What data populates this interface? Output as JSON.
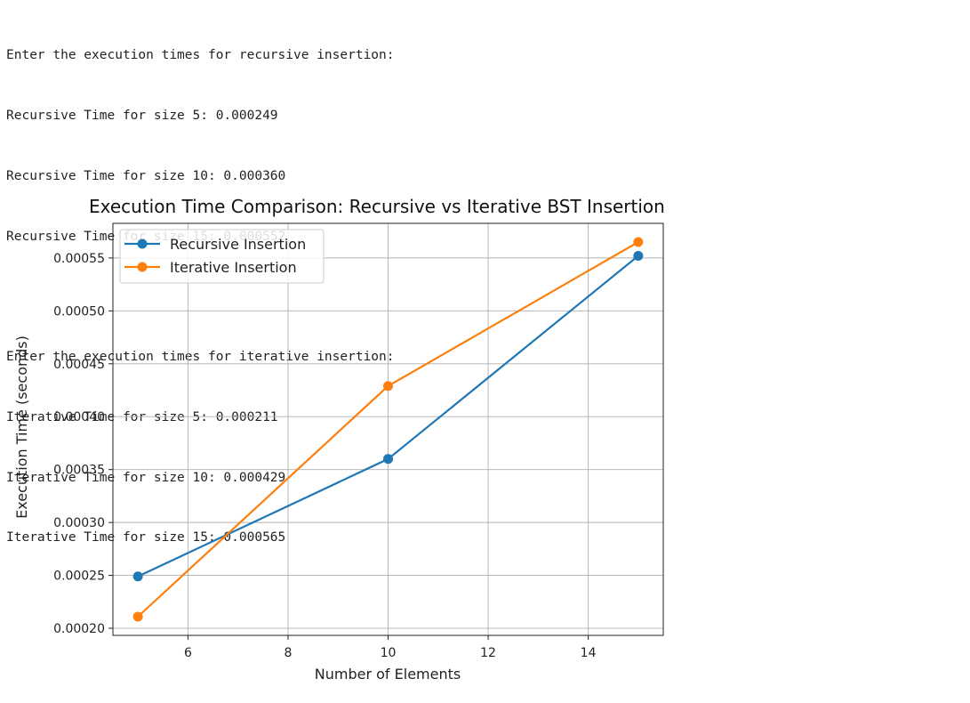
{
  "console": {
    "recursive_header": "Enter the execution times for recursive insertion:",
    "recursive_lines": [
      "Recursive Time for size 5: 0.000249",
      "Recursive Time for size 10: 0.000360",
      "Recursive Time for size 15: 0.000552"
    ],
    "iterative_header": "Enter the execution times for iterative insertion:",
    "iterative_lines": [
      "Iterative Time for size 5: 0.000211",
      "Iterative Time for size 10: 0.000429",
      "Iterative Time for size 15: 0.000565"
    ]
  },
  "chart_data": {
    "type": "line",
    "title": "Execution Time Comparison: Recursive vs Iterative BST Insertion",
    "xlabel": "Number of Elements",
    "ylabel": "Execution Time (seconds)",
    "x": [
      5,
      10,
      15
    ],
    "series": [
      {
        "name": "Recursive Insertion",
        "values": [
          0.000249,
          0.00036,
          0.000552
        ],
        "color": "#1f77b4"
      },
      {
        "name": "Iterative Insertion",
        "values": [
          0.000211,
          0.000429,
          0.000565
        ],
        "color": "#ff7f0e"
      }
    ],
    "xlim": [
      4.5,
      15.5
    ],
    "ylim": [
      0.0001933,
      0.0005827
    ],
    "xticks": [
      6,
      8,
      10,
      12,
      14
    ],
    "xtick_labels": [
      "6",
      "8",
      "10",
      "12",
      "14"
    ],
    "yticks": [
      0.0002,
      0.00025,
      0.0003,
      0.00035,
      0.0004,
      0.00045,
      0.0005,
      0.00055
    ],
    "ytick_labels": [
      "0.00020",
      "0.00025",
      "0.00030",
      "0.00035",
      "0.00040",
      "0.00045",
      "0.00050",
      "0.00055"
    ],
    "grid": true,
    "legend_position": "top-left"
  }
}
